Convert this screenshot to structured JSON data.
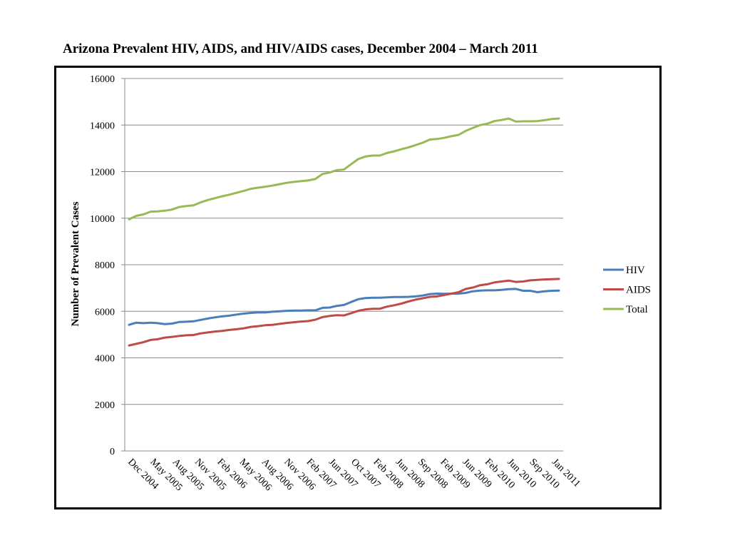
{
  "page": {
    "title": "Arizona Prevalent HIV, AIDS, and HIV/AIDS cases, December 2004 – March 2011"
  },
  "chart_data": {
    "type": "line",
    "title": "Arizona Prevalent HIV, AIDS, and HIV/AIDS cases, December 2004 – March 2011",
    "xlabel": "",
    "ylabel": "Number of Prevalent Cases",
    "ylim": [
      0,
      16000
    ],
    "y_ticks": [
      0,
      2000,
      4000,
      6000,
      8000,
      10000,
      12000,
      14000,
      16000
    ],
    "grid": true,
    "legend_position": "right",
    "x_tick_labels": [
      "Dec 2004",
      "May 2005",
      "Aug 2005",
      "Nov 2005",
      "Feb 2006",
      "May 2006",
      "Aug 2006",
      "Nov 2006",
      "Feb 2007",
      "Jun 2007",
      "Oct 2007",
      "Feb 2008",
      "Jun 2008",
      "Sep 2008",
      "Feb 2009",
      "Jun 2009",
      "Feb 2010",
      "Jun 2010",
      "Sep 2010",
      "Jan 2011"
    ],
    "series": [
      {
        "name": "HIV",
        "color": "#4a7ebb",
        "values": [
          5420,
          5510,
          5490,
          5510,
          5490,
          5450,
          5470,
          5540,
          5550,
          5570,
          5630,
          5690,
          5740,
          5780,
          5810,
          5860,
          5900,
          5930,
          5950,
          5950,
          5980,
          6000,
          6020,
          6030,
          6030,
          6040,
          6040,
          6150,
          6160,
          6230,
          6270,
          6400,
          6520,
          6570,
          6580,
          6580,
          6600,
          6610,
          6610,
          6620,
          6640,
          6680,
          6740,
          6760,
          6750,
          6760,
          6760,
          6790,
          6860,
          6890,
          6900,
          6900,
          6920,
          6950,
          6960,
          6880,
          6880,
          6820,
          6860,
          6880,
          6890
        ]
      },
      {
        "name": "AIDS",
        "color": "#be4b48",
        "values": [
          4530,
          4600,
          4670,
          4770,
          4800,
          4870,
          4900,
          4940,
          4970,
          4980,
          5050,
          5090,
          5130,
          5160,
          5200,
          5230,
          5270,
          5330,
          5360,
          5400,
          5420,
          5460,
          5500,
          5530,
          5560,
          5580,
          5640,
          5750,
          5800,
          5830,
          5820,
          5920,
          6020,
          6080,
          6110,
          6110,
          6200,
          6260,
          6330,
          6420,
          6500,
          6560,
          6620,
          6640,
          6700,
          6760,
          6820,
          6960,
          7020,
          7120,
          7160,
          7240,
          7280,
          7320,
          7260,
          7280,
          7330,
          7350,
          7370,
          7380,
          7390
        ]
      },
      {
        "name": "Total",
        "color": "#98b954",
        "values": [
          9950,
          10100,
          10160,
          10280,
          10290,
          10320,
          10370,
          10480,
          10520,
          10550,
          10680,
          10780,
          10860,
          10940,
          11010,
          11090,
          11170,
          11260,
          11310,
          11350,
          11400,
          11460,
          11520,
          11560,
          11590,
          11620,
          11680,
          11900,
          11960,
          12060,
          12090,
          12320,
          12540,
          12650,
          12690,
          12690,
          12800,
          12870,
          12960,
          13040,
          13140,
          13240,
          13380,
          13400,
          13450,
          13520,
          13580,
          13750,
          13880,
          14000,
          14060,
          14170,
          14220,
          14280,
          14150,
          14160,
          14160,
          14170,
          14210,
          14260,
          14280
        ]
      }
    ]
  }
}
